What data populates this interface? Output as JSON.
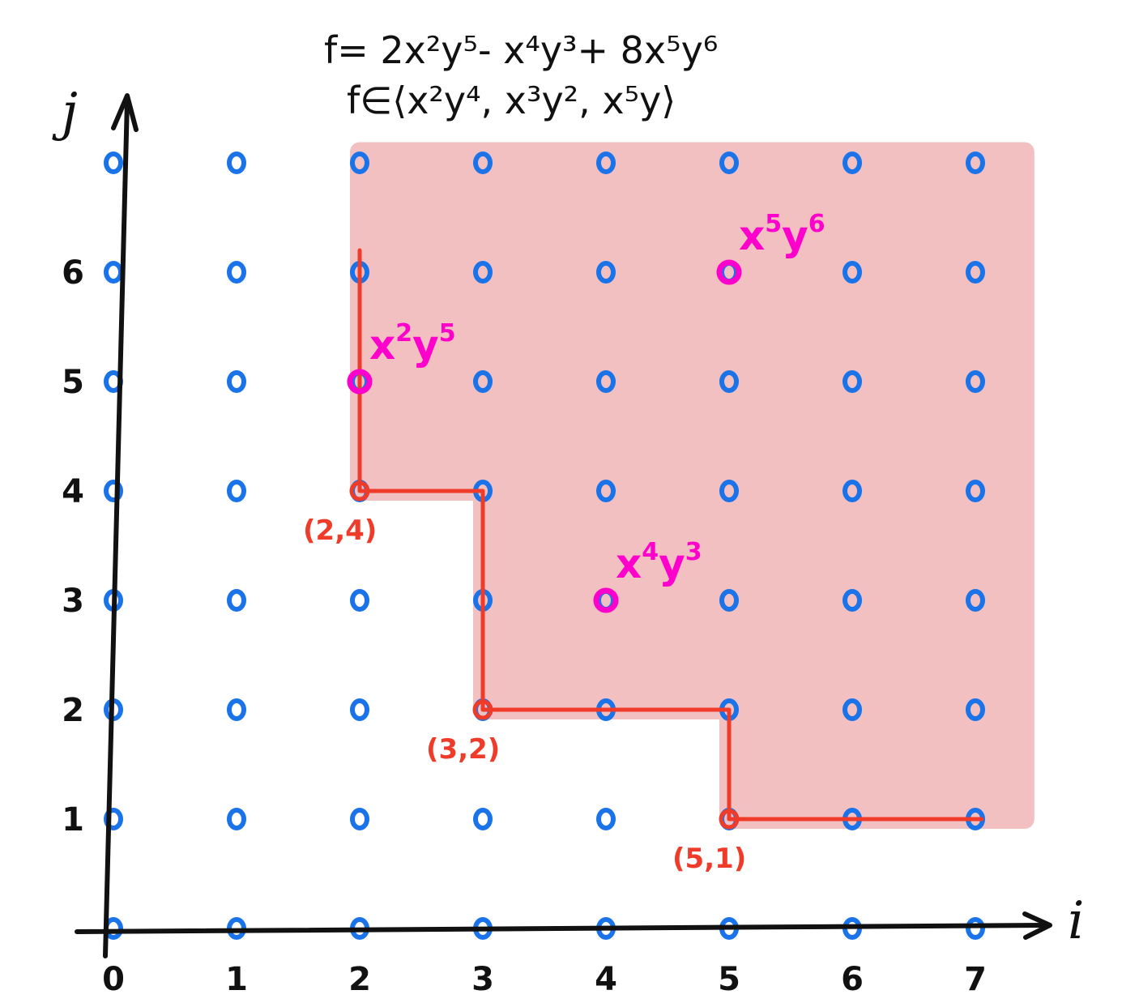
{
  "title": {
    "line1": "f= 2x²y⁵- x⁴y³+ 8x⁵y⁶",
    "line2": "f∈⟨x²y⁴, x³y², x⁵y⟩"
  },
  "axes": {
    "x_label": "i",
    "y_label": "j",
    "x_ticks": [
      "0",
      "1",
      "2",
      "3",
      "4",
      "5",
      "6",
      "7"
    ],
    "y_ticks": [
      "1",
      "2",
      "3",
      "4",
      "5",
      "6"
    ]
  },
  "colors": {
    "axis": "#111111",
    "dot": "#1a73e8",
    "region": "#f2c0c0",
    "boundary": "#ee3b2a",
    "term": "#ff00cc"
  },
  "chart_data": {
    "type": "scatter",
    "grid_i": [
      0,
      1,
      2,
      3,
      4,
      5,
      6,
      7
    ],
    "grid_j": [
      0,
      1,
      2,
      3,
      4,
      5,
      6,
      7
    ],
    "generators": [
      {
        "label": "(2,4)",
        "i": 2,
        "j": 4
      },
      {
        "label": "(3,2)",
        "i": 3,
        "j": 2
      },
      {
        "label": "(5,1)",
        "i": 5,
        "j": 1
      }
    ],
    "terms": [
      {
        "base": "x",
        "exp_x": "2",
        "mid": "y",
        "exp_y": "5",
        "i": 2,
        "j": 5
      },
      {
        "base": "x",
        "exp_x": "4",
        "mid": "y",
        "exp_y": "3",
        "i": 4,
        "j": 3
      },
      {
        "base": "x",
        "exp_x": "5",
        "mid": "y",
        "exp_y": "6",
        "i": 5,
        "j": 6
      }
    ]
  }
}
